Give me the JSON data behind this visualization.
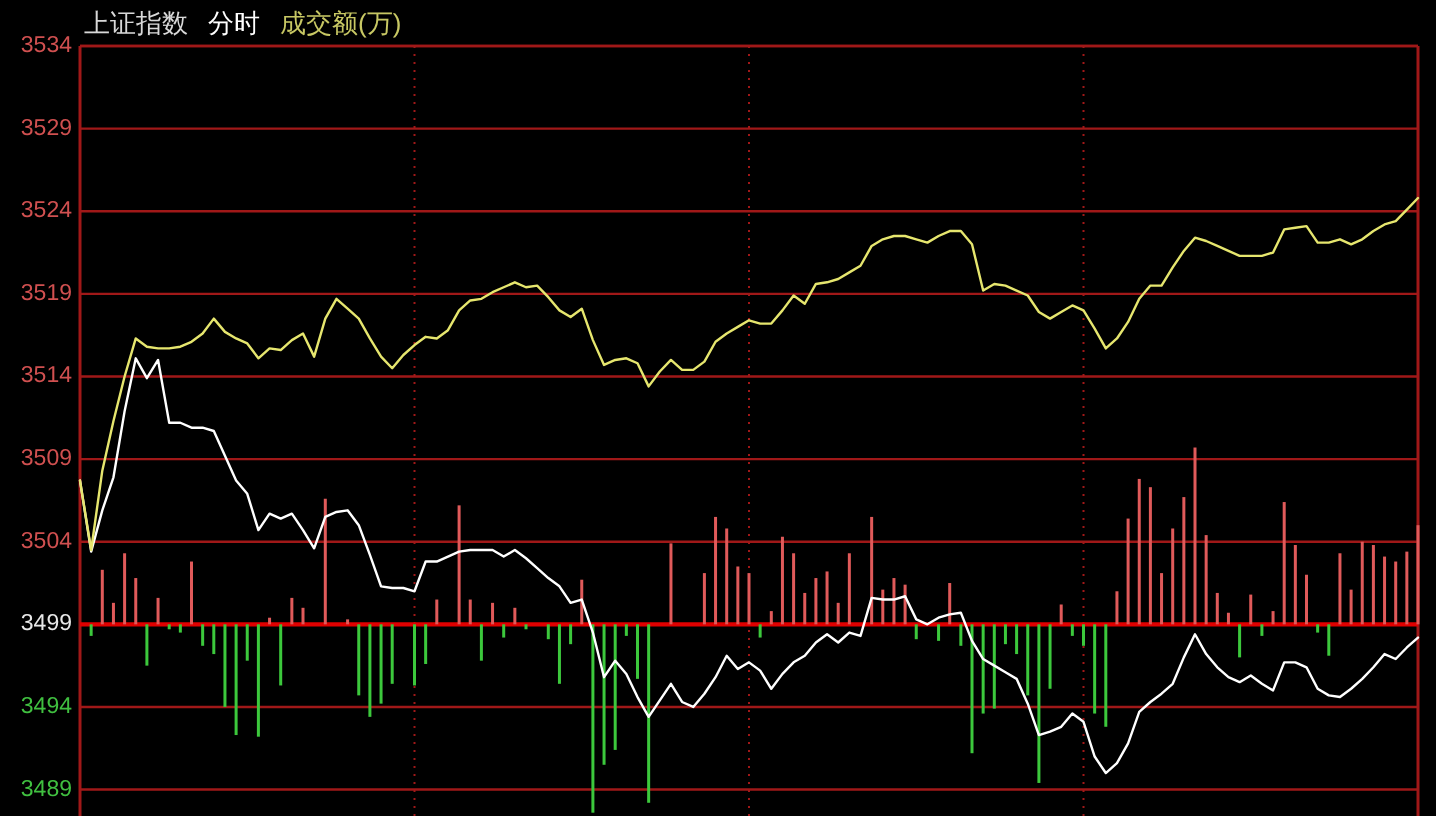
{
  "chart_data": {
    "type": "line",
    "title": "上证指数",
    "subtitle": "分时",
    "annotations": [
      "成交额(万)"
    ],
    "categories": [
      null,
      null,
      null,
      null,
      null,
      null,
      null,
      null,
      null,
      null,
      null,
      null,
      null,
      null,
      null,
      null,
      null,
      null,
      null,
      null,
      null,
      null,
      null,
      null,
      null,
      null,
      null,
      null,
      null,
      null,
      null,
      null,
      null,
      null,
      null,
      null,
      null,
      null,
      null,
      null,
      null,
      null,
      null,
      null,
      null,
      null,
      null,
      null,
      null,
      null,
      null,
      null,
      null,
      null,
      null,
      null,
      null,
      null,
      null,
      null,
      null,
      null,
      null,
      null,
      null,
      null,
      null,
      null,
      null,
      null,
      null,
      null,
      null,
      null,
      null,
      null,
      null,
      null,
      null,
      null,
      null,
      null,
      null,
      null,
      null,
      null,
      null,
      null,
      null,
      null,
      null,
      null,
      null,
      null,
      null,
      null,
      null,
      null,
      null,
      null,
      null,
      null,
      null,
      null,
      null,
      null,
      null,
      null,
      null,
      null,
      null,
      null,
      null,
      null,
      null,
      null,
      null,
      null,
      null,
      null,
      null
    ],
    "ylim": [
      3487.4,
      3534
    ],
    "yticks": [
      3489,
      3494,
      3499,
      3504,
      3509,
      3514,
      3519,
      3524,
      3529,
      3534
    ],
    "tick_labels": "y",
    "grid": true,
    "ref_lines": [
      {
        "axis": "y",
        "value": 3499,
        "color": "#e00000"
      }
    ],
    "series": [
      {
        "type": "bar",
        "values": [
          null,
          -0.7,
          3.3,
          1.3,
          4.3,
          2.8,
          -2.5,
          1.6,
          -0.3,
          -0.5,
          3.8,
          -1.3,
          -1.8,
          -5.0,
          -6.7,
          -2.2,
          -6.8,
          0.4,
          -3.7,
          1.6,
          1.0,
          null,
          7.6,
          null,
          0.3,
          -4.3,
          -5.6,
          -4.8,
          -3.6,
          null,
          -3.7,
          -2.4,
          1.5,
          null,
          7.2,
          1.5,
          -2.2,
          1.3,
          -0.8,
          1.0,
          -0.3,
          null,
          -0.9,
          -3.6,
          -1.2,
          2.7,
          -11.4,
          -8.5,
          -7.6,
          -0.7,
          -3.3,
          -10.8,
          null,
          4.9,
          null,
          null,
          3.1,
          6.5,
          5.8,
          3.5,
          3.1,
          -0.8,
          0.8,
          5.3,
          4.3,
          1.9,
          2.8,
          3.2,
          1.3,
          4.3,
          null,
          6.5,
          2.1,
          2.8,
          2.4,
          -0.9,
          null,
          -1.0,
          2.5,
          -1.3,
          -7.8,
          -5.4,
          -5.1,
          -1.2,
          -1.8,
          -4.3,
          -9.6,
          -3.9,
          1.2,
          -0.7,
          -1.3,
          -5.4,
          -6.2,
          2.0,
          6.4,
          8.8,
          8.3,
          3.1,
          5.8,
          7.7,
          10.7,
          5.4,
          1.9,
          0.7,
          -2.0,
          1.8,
          -0.7,
          0.8,
          7.4,
          4.8,
          3.0,
          -0.5,
          -1.9,
          4.3,
          2.1,
          5.0,
          4.8,
          4.1,
          3.8,
          4.4,
          6.0
        ],
        "colors": [
          null,
          "#3cc83c",
          "#e05a5a",
          "#e05a5a",
          "#e05a5a",
          "#e05a5a",
          "#3cc83c",
          "#e05a5a",
          "#3cc83c",
          "#3cc83c",
          "#e05a5a",
          "#3cc83c",
          "#3cc83c",
          "#3cc83c",
          "#3cc83c",
          "#3cc83c",
          "#3cc83c",
          "#e05a5a",
          "#3cc83c",
          "#e05a5a",
          "#e05a5a",
          null,
          "#e05a5a",
          null,
          "#e05a5a",
          "#3cc83c",
          "#3cc83c",
          "#3cc83c",
          "#3cc83c",
          null,
          "#3cc83c",
          "#3cc83c",
          "#e05a5a",
          null,
          "#e05a5a",
          "#e05a5a",
          "#3cc83c",
          "#e05a5a",
          "#3cc83c",
          "#e05a5a",
          "#3cc83c",
          null,
          "#3cc83c",
          "#3cc83c",
          "#3cc83c",
          "#e05a5a",
          "#3cc83c",
          "#3cc83c",
          "#3cc83c",
          "#3cc83c",
          "#3cc83c",
          "#3cc83c",
          null,
          "#e05a5a",
          null,
          null,
          "#e05a5a",
          "#e05a5a",
          "#e05a5a",
          "#e05a5a",
          "#e05a5a",
          "#3cc83c",
          "#e05a5a",
          "#e05a5a",
          "#e05a5a",
          "#e05a5a",
          "#e05a5a",
          "#e05a5a",
          "#e05a5a",
          "#e05a5a",
          null,
          "#e05a5a",
          "#e05a5a",
          "#e05a5a",
          "#e05a5a",
          "#3cc83c",
          null,
          "#3cc83c",
          "#e05a5a",
          "#3cc83c",
          "#3cc83c",
          "#3cc83c",
          "#3cc83c",
          "#3cc83c",
          "#3cc83c",
          "#3cc83c",
          "#3cc83c",
          "#3cc83c",
          "#e05a5a",
          "#3cc83c",
          "#3cc83c",
          "#3cc83c",
          "#3cc83c",
          "#e05a5a",
          "#e05a5a",
          "#e05a5a",
          "#e05a5a",
          "#e05a5a",
          "#e05a5a",
          "#e05a5a",
          "#e05a5a",
          "#e05a5a",
          "#e05a5a",
          "#e05a5a",
          "#3cc83c",
          "#e05a5a",
          "#3cc83c",
          "#e05a5a",
          "#e05a5a",
          "#e05a5a",
          "#e05a5a",
          "#3cc83c",
          "#3cc83c",
          "#e05a5a",
          "#e05a5a",
          "#e05a5a",
          "#e05a5a",
          "#e05a5a",
          "#e05a5a",
          "#e05a5a",
          "#e05a5a"
        ],
        "base": [
          null,
          3499,
          3499,
          3499,
          3499,
          3499,
          3499,
          3499,
          3499,
          3499,
          3499,
          3499,
          3499,
          3499,
          3499,
          3499,
          3499,
          3499,
          3499,
          3499,
          3499,
          null,
          3499,
          null,
          3499,
          3499,
          3499,
          3499,
          3499,
          null,
          3499,
          3499,
          3499,
          null,
          3499,
          3499,
          3499,
          3499,
          3499,
          3499,
          3499,
          null,
          3499,
          3499,
          3499,
          3499,
          3499,
          3499,
          3499,
          3499,
          3499,
          3499,
          null,
          3499,
          null,
          null,
          3499,
          3499,
          3499,
          3499,
          3499,
          3499,
          3499,
          3499,
          3499,
          3499,
          3499,
          3499,
          3499,
          3499,
          null,
          3499,
          3499,
          3499,
          3499,
          3499,
          null,
          3499,
          3499,
          3499,
          3499,
          3499,
          3499,
          3499,
          3499,
          3499,
          3499,
          3499,
          3499,
          3499,
          3499,
          3499,
          3499,
          3499,
          3499,
          3499,
          3499,
          3499,
          3499,
          3499,
          3499,
          3499,
          3499,
          3499,
          3499,
          3499,
          3499,
          3499,
          3499,
          3499,
          3499,
          3499,
          3499,
          3499,
          3499,
          3499,
          3499,
          3499,
          3499,
          3499,
          3499
        ]
      },
      {
        "color": "#ffffff",
        "values": [
          3507.7,
          3503.4,
          3505.9,
          3507.9,
          3511.9,
          3515.1,
          3513.9,
          3515.0,
          3511.2,
          3511.2,
          3510.9,
          3510.9,
          3510.7,
          3509.2,
          3507.7,
          3506.9,
          3504.7,
          3505.7,
          3505.4,
          3505.7,
          3504.7,
          3503.6,
          3505.5,
          3505.8,
          3505.9,
          3505.0,
          3503.2,
          3501.3,
          3501.2,
          3501.2,
          3501.0,
          3502.8,
          3502.8,
          3503.1,
          3503.4,
          3503.5,
          3503.5,
          3503.5,
          3503.1,
          3503.5,
          3503.0,
          3502.4,
          3501.8,
          3501.3,
          3500.3,
          3500.5,
          3498.5,
          3495.8,
          3496.8,
          3496.0,
          3494.6,
          3493.4,
          3494.4,
          3495.4,
          3494.3,
          3494.0,
          3494.8,
          3495.8,
          3497.1,
          3496.3,
          3496.7,
          3496.2,
          3495.1,
          3496.0,
          3496.7,
          3497.1,
          3497.9,
          3498.4,
          3497.9,
          3498.5,
          3498.3,
          3500.6,
          3500.5,
          3500.5,
          3500.7,
          3499.3,
          3499.0,
          3499.4,
          3499.6,
          3499.7,
          3498.0,
          3496.9,
          3496.5,
          3496.1,
          3495.7,
          3494.2,
          3492.3,
          3492.5,
          3492.8,
          3493.6,
          3493.1,
          3491.0,
          3490.0,
          3490.6,
          3491.8,
          3493.7,
          3494.3,
          3494.8,
          3495.4,
          3497.0,
          3498.4,
          3497.2,
          3496.4,
          3495.8,
          3495.5,
          3495.9,
          3495.4,
          3495.0,
          3496.7,
          3496.7,
          3496.4,
          3495.1,
          3494.7,
          3494.6,
          3495.1,
          3495.7,
          3496.4,
          3497.2,
          3496.9,
          3497.6,
          3498.2
        ]
      },
      {
        "color": "#e6e66e",
        "values": [
          3507.7,
          3503.5,
          3508.3,
          3511.3,
          3514.0,
          3516.3,
          3515.8,
          3515.7,
          3515.7,
          3515.8,
          3516.1,
          3516.6,
          3517.5,
          3516.7,
          3516.3,
          3516.0,
          3515.1,
          3515.7,
          3515.6,
          3516.2,
          3516.6,
          3515.2,
          3517.5,
          3518.7,
          3518.1,
          3517.5,
          3516.3,
          3515.2,
          3514.5,
          3515.3,
          3515.9,
          3516.4,
          3516.3,
          3516.8,
          3518.0,
          3518.6,
          3518.7,
          3519.1,
          3519.4,
          3519.7,
          3519.4,
          3519.5,
          3518.8,
          3518.0,
          3517.6,
          3518.1,
          3516.2,
          3514.7,
          3515.0,
          3515.1,
          3514.8,
          3513.4,
          3514.3,
          3515.0,
          3514.4,
          3514.4,
          3514.9,
          3516.1,
          3516.6,
          3517.0,
          3517.4,
          3517.2,
          3517.2,
          3518.0,
          3518.9,
          3518.4,
          3519.6,
          3519.7,
          3519.9,
          3520.3,
          3520.7,
          3521.9,
          3522.3,
          3522.5,
          3522.5,
          3522.3,
          3522.1,
          3522.5,
          3522.8,
          3522.8,
          3522.0,
          3519.2,
          3519.6,
          3519.5,
          3519.2,
          3518.9,
          3517.9,
          3517.5,
          3517.9,
          3518.3,
          3518.0,
          3516.9,
          3515.7,
          3516.3,
          3517.3,
          3518.7,
          3519.5,
          3519.5,
          3520.6,
          3521.6,
          3522.4,
          3522.2,
          3521.9,
          3521.6,
          3521.3,
          3521.3,
          3521.3,
          3521.5,
          3522.9,
          3523.0,
          3523.1,
          3522.1,
          3522.1,
          3522.3,
          3522.0,
          3522.3,
          3522.8,
          3523.2,
          3523.4,
          3524.1,
          3524.8
        ]
      }
    ]
  }
}
